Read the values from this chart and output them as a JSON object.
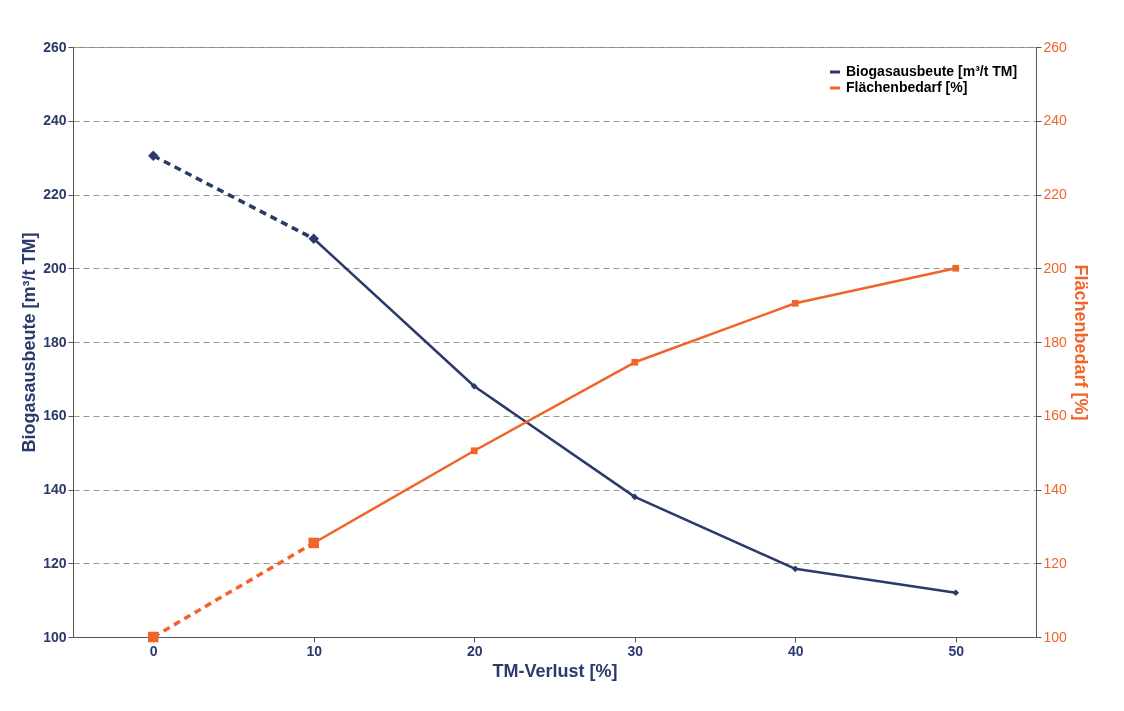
{
  "chart_data": {
    "type": "line",
    "xlabel": "TM-Verlust [%]",
    "ylabel": "Biogasausbeute [m³/t TM]",
    "y2label": "Flächenbedarf [%]",
    "categories": [
      "0",
      "10",
      "20",
      "30",
      "40",
      "50"
    ],
    "series": [
      {
        "color": "#2b3a6b",
        "marker": "diamond",
        "line_style": "dashed",
        "values": [
          230.5,
          208,
          null,
          null,
          null,
          null
        ]
      },
      {
        "name": "Biogasausbeute [m³/t TM]",
        "color": "#2b3a6b",
        "marker": "diamond",
        "line_style": "solid",
        "values": [
          null,
          208,
          168,
          138,
          118.5,
          112
        ]
      },
      {
        "color": "#f0642a",
        "marker": "square",
        "line_style": "dashed",
        "axis": "y2",
        "values": [
          100,
          125.5,
          null,
          null,
          null,
          null
        ]
      },
      {
        "name": "Flächenbedarf [%]",
        "color": "#f0642a",
        "marker": "square",
        "line_style": "solid",
        "axis": "y2",
        "values": [
          null,
          125.5,
          150.5,
          174.5,
          190.5,
          200
        ]
      }
    ],
    "ylim": [
      100,
      260
    ],
    "yticks": [
      100,
      120,
      140,
      160,
      180,
      200,
      220,
      240,
      260
    ],
    "y2lim": [
      100,
      260
    ],
    "y2ticks": [
      100,
      120,
      140,
      160,
      180,
      200,
      220,
      240,
      260
    ],
    "grid": "y",
    "legend": "top right"
  }
}
